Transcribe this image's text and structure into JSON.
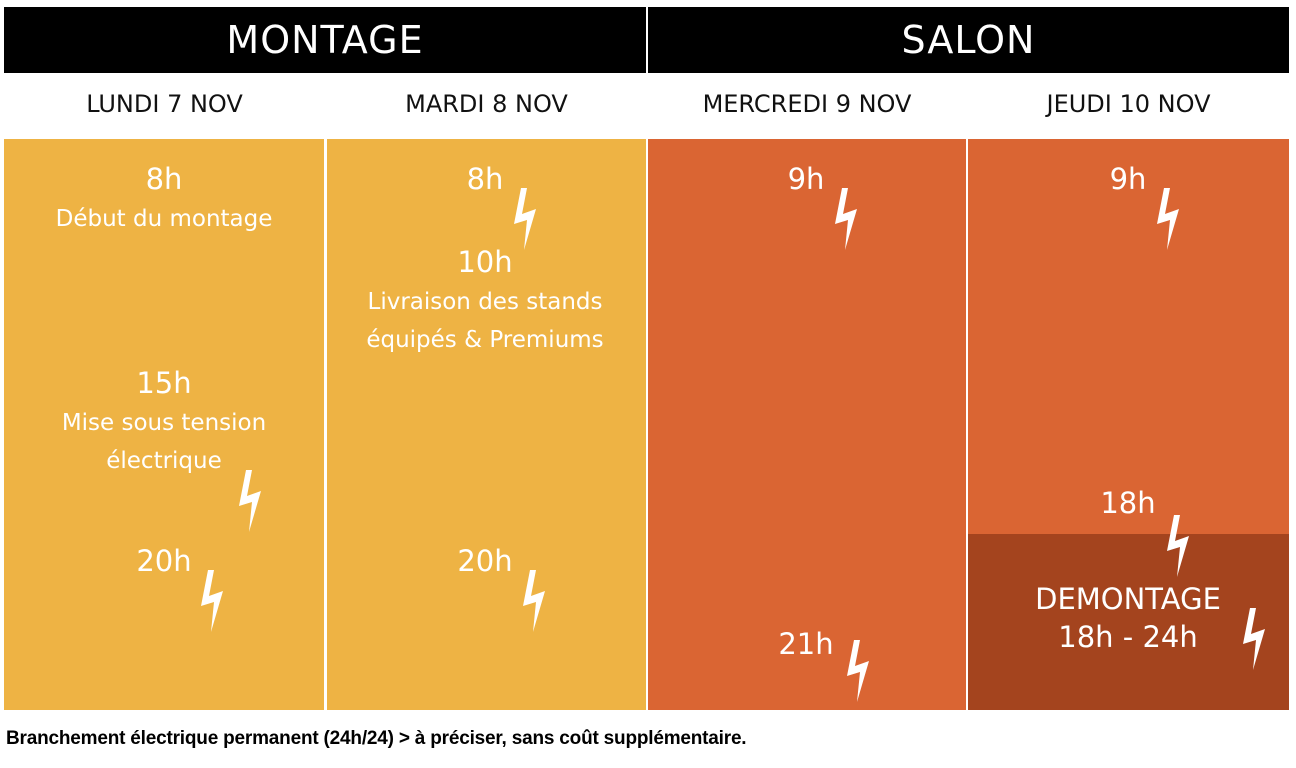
{
  "phases": [
    {
      "label": "MONTAGE"
    },
    {
      "label": "SALON"
    }
  ],
  "days": [
    {
      "label": "LUNDI 7 NOV"
    },
    {
      "label": "MARDI 8 NOV"
    },
    {
      "label": "MERCREDI 9 NOV"
    },
    {
      "label": "JEUDI 10 NOV"
    }
  ],
  "colors": {
    "montage": "#EEB344",
    "salon": "#DA6533",
    "demontage": "#A4441E",
    "header": "#000000"
  },
  "monday": {
    "start_hour": "8h",
    "start_desc": "Début du montage",
    "power_hour": "15h",
    "power_desc_1": "Mise sous tension",
    "power_desc_2": "électrique",
    "end_hour": "20h"
  },
  "tuesday": {
    "start_hour": "8h",
    "delivery_hour": "10h",
    "delivery_desc_1": "Livraison des stands",
    "delivery_desc_2": "équipés & Premiums",
    "end_hour": "20h"
  },
  "wednesday": {
    "start_hour": "9h",
    "end_hour": "21h"
  },
  "thursday": {
    "start_hour": "9h",
    "end_hour": "18h",
    "demontage_title": "DEMONTAGE",
    "demontage_hours": "18h - 24h"
  },
  "icons": [
    "lightning-bolt-icon"
  ],
  "footer": "Branchement électrique permanent (24h/24) > à préciser, sans coût supplémentaire."
}
